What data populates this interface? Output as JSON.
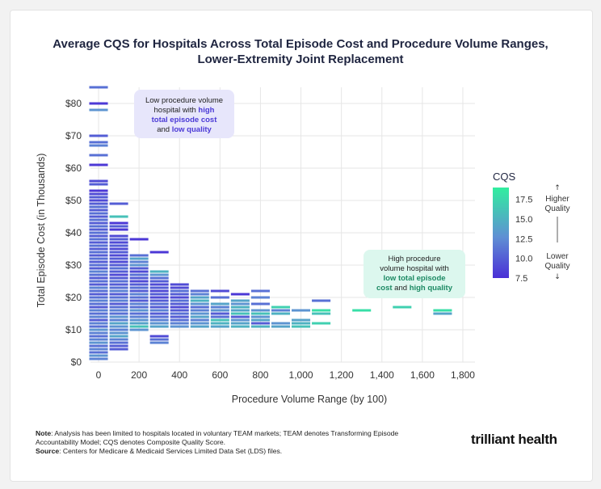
{
  "title_line1": "Average CQS for Hospitals Across Total Episode Cost and Procedure Volume Ranges,",
  "title_line2": "Lower-Extremity Joint Replacement",
  "footnote": {
    "note_label": "Note",
    "note_text": ": Analysis has been limited to hospitals located in voluntary TEAM markets; TEAM denotes Transforming Episode Accountability Model; CQS denotes Composite Quality Score.",
    "source_label": "Source",
    "source_text": ": Centers for Medicare & Medicaid Services Limited Data Set (LDS) files."
  },
  "logo_text": "trilliant health",
  "callouts": {
    "low_volume": {
      "line1": "Low procedure volume",
      "line2_plain": "hospital with ",
      "line2_hl": "high",
      "line3_hl": "total episode cost",
      "line4_plain": "and ",
      "line4_hl": "low quality"
    },
    "high_volume": {
      "line1": "High procedure",
      "line2": "volume hospital with",
      "line3_hl": "low total episode",
      "line4_hl1": "cost",
      "line4_plain": " and ",
      "line4_hl2": "high quality"
    }
  },
  "colors": {
    "low": "#4a2fd6",
    "mid": "#5f8fd4",
    "high": "#31ee9f",
    "grid": "#e6e6e6",
    "callout_purple_bg": "#e7e6fb",
    "callout_green_bg": "#dcf7ee"
  },
  "chart_data": {
    "type": "heatmap",
    "xlabel": "Procedure Volume Range (by 100)",
    "ylabel": "Total Episode Cost (in Thousands)",
    "x_ticks": [
      "0",
      "200",
      "400",
      "600",
      "800",
      "1,000",
      "1,200",
      "1,400",
      "1,600",
      "1,800"
    ],
    "y_ticks": [
      "$0",
      "$10",
      "$20",
      "$30",
      "$40",
      "$50",
      "$60",
      "$70",
      "$80"
    ],
    "xlim": [
      -40,
      1860
    ],
    "ylim": [
      0,
      85
    ],
    "x_bin_width": 100,
    "y_bin_height": 1,
    "legend": {
      "title": "CQS",
      "min": 7.5,
      "max": 19,
      "ticks": [
        "17.5",
        "15.0",
        "12.5",
        "10.0",
        "7.5"
      ],
      "higher_label": [
        "Higher",
        "Quality"
      ],
      "lower_label": [
        "Lower",
        "Quality"
      ],
      "placement": "right"
    },
    "columns": [
      {
        "x": 0,
        "cells": [
          [
            1,
            12
          ],
          [
            2,
            13
          ],
          [
            3,
            11
          ],
          [
            4,
            12
          ],
          [
            5,
            11
          ],
          [
            6,
            13
          ],
          [
            7,
            12
          ],
          [
            8,
            11
          ],
          [
            9,
            12
          ],
          [
            10,
            13
          ],
          [
            11,
            11
          ],
          [
            12,
            12
          ],
          [
            13,
            10
          ],
          [
            14,
            12
          ],
          [
            15,
            11
          ],
          [
            16,
            12
          ],
          [
            17,
            10
          ],
          [
            18,
            11
          ],
          [
            19,
            12
          ],
          [
            20,
            11
          ],
          [
            21,
            10
          ],
          [
            22,
            11
          ],
          [
            23,
            12
          ],
          [
            24,
            10
          ],
          [
            25,
            11
          ],
          [
            26,
            10
          ],
          [
            27,
            11
          ],
          [
            28,
            12
          ],
          [
            29,
            10
          ],
          [
            30,
            11
          ],
          [
            31,
            10
          ],
          [
            32,
            11
          ],
          [
            33,
            10
          ],
          [
            34,
            11
          ],
          [
            35,
            10
          ],
          [
            36,
            11
          ],
          [
            37,
            10
          ],
          [
            38,
            11
          ],
          [
            39,
            10
          ],
          [
            40,
            11
          ],
          [
            41,
            10
          ],
          [
            42,
            11
          ],
          [
            43,
            10
          ],
          [
            44,
            11
          ],
          [
            45,
            10
          ],
          [
            46,
            11
          ],
          [
            47,
            10
          ],
          [
            48,
            11
          ],
          [
            49,
            10
          ],
          [
            50,
            9
          ],
          [
            51,
            10
          ],
          [
            52,
            9
          ],
          [
            53,
            8
          ],
          [
            55,
            10
          ],
          [
            56,
            9
          ],
          [
            61,
            8
          ],
          [
            64,
            11
          ],
          [
            67,
            12
          ],
          [
            68,
            11
          ],
          [
            70,
            10
          ],
          [
            78,
            13
          ],
          [
            80,
            8
          ],
          [
            85,
            11
          ]
        ]
      },
      {
        "x": 100,
        "cells": [
          [
            4,
            10
          ],
          [
            5,
            10
          ],
          [
            6,
            11
          ],
          [
            7,
            12
          ],
          [
            8,
            14
          ],
          [
            9,
            13
          ],
          [
            10,
            12
          ],
          [
            11,
            13
          ],
          [
            12,
            14
          ],
          [
            13,
            12
          ],
          [
            14,
            13
          ],
          [
            15,
            11
          ],
          [
            16,
            12
          ],
          [
            17,
            11
          ],
          [
            18,
            10
          ],
          [
            19,
            12
          ],
          [
            20,
            11
          ],
          [
            21,
            10
          ],
          [
            22,
            12
          ],
          [
            23,
            11
          ],
          [
            24,
            10
          ],
          [
            25,
            11
          ],
          [
            26,
            10
          ],
          [
            27,
            9
          ],
          [
            28,
            10
          ],
          [
            29,
            11
          ],
          [
            30,
            10
          ],
          [
            31,
            9
          ],
          [
            32,
            10
          ],
          [
            33,
            9
          ],
          [
            34,
            10
          ],
          [
            35,
            9
          ],
          [
            36,
            10
          ],
          [
            37,
            9
          ],
          [
            38,
            10
          ],
          [
            39,
            9
          ],
          [
            41,
            8
          ],
          [
            42,
            10
          ],
          [
            43,
            8
          ],
          [
            45,
            16
          ],
          [
            49,
            10
          ]
        ]
      },
      {
        "x": 200,
        "cells": [
          [
            10,
            13
          ],
          [
            11,
            16
          ],
          [
            12,
            14
          ],
          [
            13,
            13
          ],
          [
            14,
            12
          ],
          [
            15,
            11
          ],
          [
            16,
            13
          ],
          [
            17,
            11
          ],
          [
            18,
            12
          ],
          [
            19,
            10
          ],
          [
            20,
            11
          ],
          [
            21,
            12
          ],
          [
            22,
            10
          ],
          [
            23,
            11
          ],
          [
            24,
            10
          ],
          [
            25,
            9
          ],
          [
            26,
            10
          ],
          [
            27,
            11
          ],
          [
            28,
            9
          ],
          [
            29,
            10
          ],
          [
            30,
            13
          ],
          [
            31,
            12
          ],
          [
            32,
            14
          ],
          [
            33,
            11
          ],
          [
            38,
            8
          ]
        ]
      },
      {
        "x": 300,
        "cells": [
          [
            6,
            12
          ],
          [
            7,
            11
          ],
          [
            8,
            9
          ],
          [
            11,
            14
          ],
          [
            12,
            13
          ],
          [
            13,
            12
          ],
          [
            14,
            11
          ],
          [
            15,
            10
          ],
          [
            16,
            12
          ],
          [
            17,
            10
          ],
          [
            18,
            11
          ],
          [
            19,
            10
          ],
          [
            20,
            9
          ],
          [
            21,
            10
          ],
          [
            22,
            9
          ],
          [
            23,
            10
          ],
          [
            24,
            9
          ],
          [
            25,
            10
          ],
          [
            26,
            11
          ],
          [
            27,
            13
          ],
          [
            28,
            15
          ],
          [
            34,
            8
          ]
        ]
      },
      {
        "x": 400,
        "cells": [
          [
            11,
            13
          ],
          [
            12,
            12
          ],
          [
            13,
            11
          ],
          [
            14,
            10
          ],
          [
            15,
            11
          ],
          [
            16,
            10
          ],
          [
            17,
            9
          ],
          [
            18,
            10
          ],
          [
            19,
            11
          ],
          [
            20,
            9
          ],
          [
            21,
            10
          ],
          [
            22,
            11
          ],
          [
            23,
            9
          ],
          [
            24,
            9
          ]
        ]
      },
      {
        "x": 500,
        "cells": [
          [
            11,
            14
          ],
          [
            12,
            13
          ],
          [
            13,
            12
          ],
          [
            14,
            14
          ],
          [
            15,
            13
          ],
          [
            16,
            12
          ],
          [
            17,
            11
          ],
          [
            18,
            13
          ],
          [
            19,
            15
          ],
          [
            20,
            14
          ],
          [
            21,
            12
          ],
          [
            22,
            11
          ]
        ]
      },
      {
        "x": 600,
        "cells": [
          [
            11,
            14
          ],
          [
            12,
            15
          ],
          [
            13,
            16
          ],
          [
            14,
            11
          ],
          [
            15,
            10
          ],
          [
            16,
            13
          ],
          [
            17,
            12
          ],
          [
            18,
            14
          ],
          [
            20,
            11
          ],
          [
            22,
            9
          ]
        ]
      },
      {
        "x": 700,
        "cells": [
          [
            11,
            15
          ],
          [
            12,
            14
          ],
          [
            13,
            13
          ],
          [
            14,
            10
          ],
          [
            15,
            16
          ],
          [
            16,
            14
          ],
          [
            17,
            15
          ],
          [
            18,
            13
          ],
          [
            19,
            14
          ],
          [
            21,
            8
          ]
        ]
      },
      {
        "x": 800,
        "cells": [
          [
            11,
            15
          ],
          [
            12,
            10
          ],
          [
            13,
            14
          ],
          [
            14,
            13
          ],
          [
            15,
            16
          ],
          [
            16,
            13
          ],
          [
            18,
            11
          ],
          [
            20,
            12
          ],
          [
            22,
            11
          ]
        ]
      },
      {
        "x": 900,
        "cells": [
          [
            11,
            14
          ],
          [
            12,
            13
          ],
          [
            15,
            15
          ],
          [
            16,
            12
          ],
          [
            17,
            17
          ]
        ]
      },
      {
        "x": 1000,
        "cells": [
          [
            11,
            16
          ],
          [
            12,
            15
          ],
          [
            13,
            14
          ],
          [
            16,
            13
          ]
        ]
      },
      {
        "x": 1100,
        "cells": [
          [
            12,
            17
          ],
          [
            15,
            16
          ],
          [
            16,
            18
          ],
          [
            19,
            11
          ]
        ]
      },
      {
        "x": 1300,
        "cells": [
          [
            16,
            18
          ]
        ]
      },
      {
        "x": 1500,
        "cells": [
          [
            17,
            17
          ]
        ]
      },
      {
        "x": 1700,
        "cells": [
          [
            15,
            14
          ],
          [
            16,
            18
          ]
        ]
      }
    ]
  }
}
